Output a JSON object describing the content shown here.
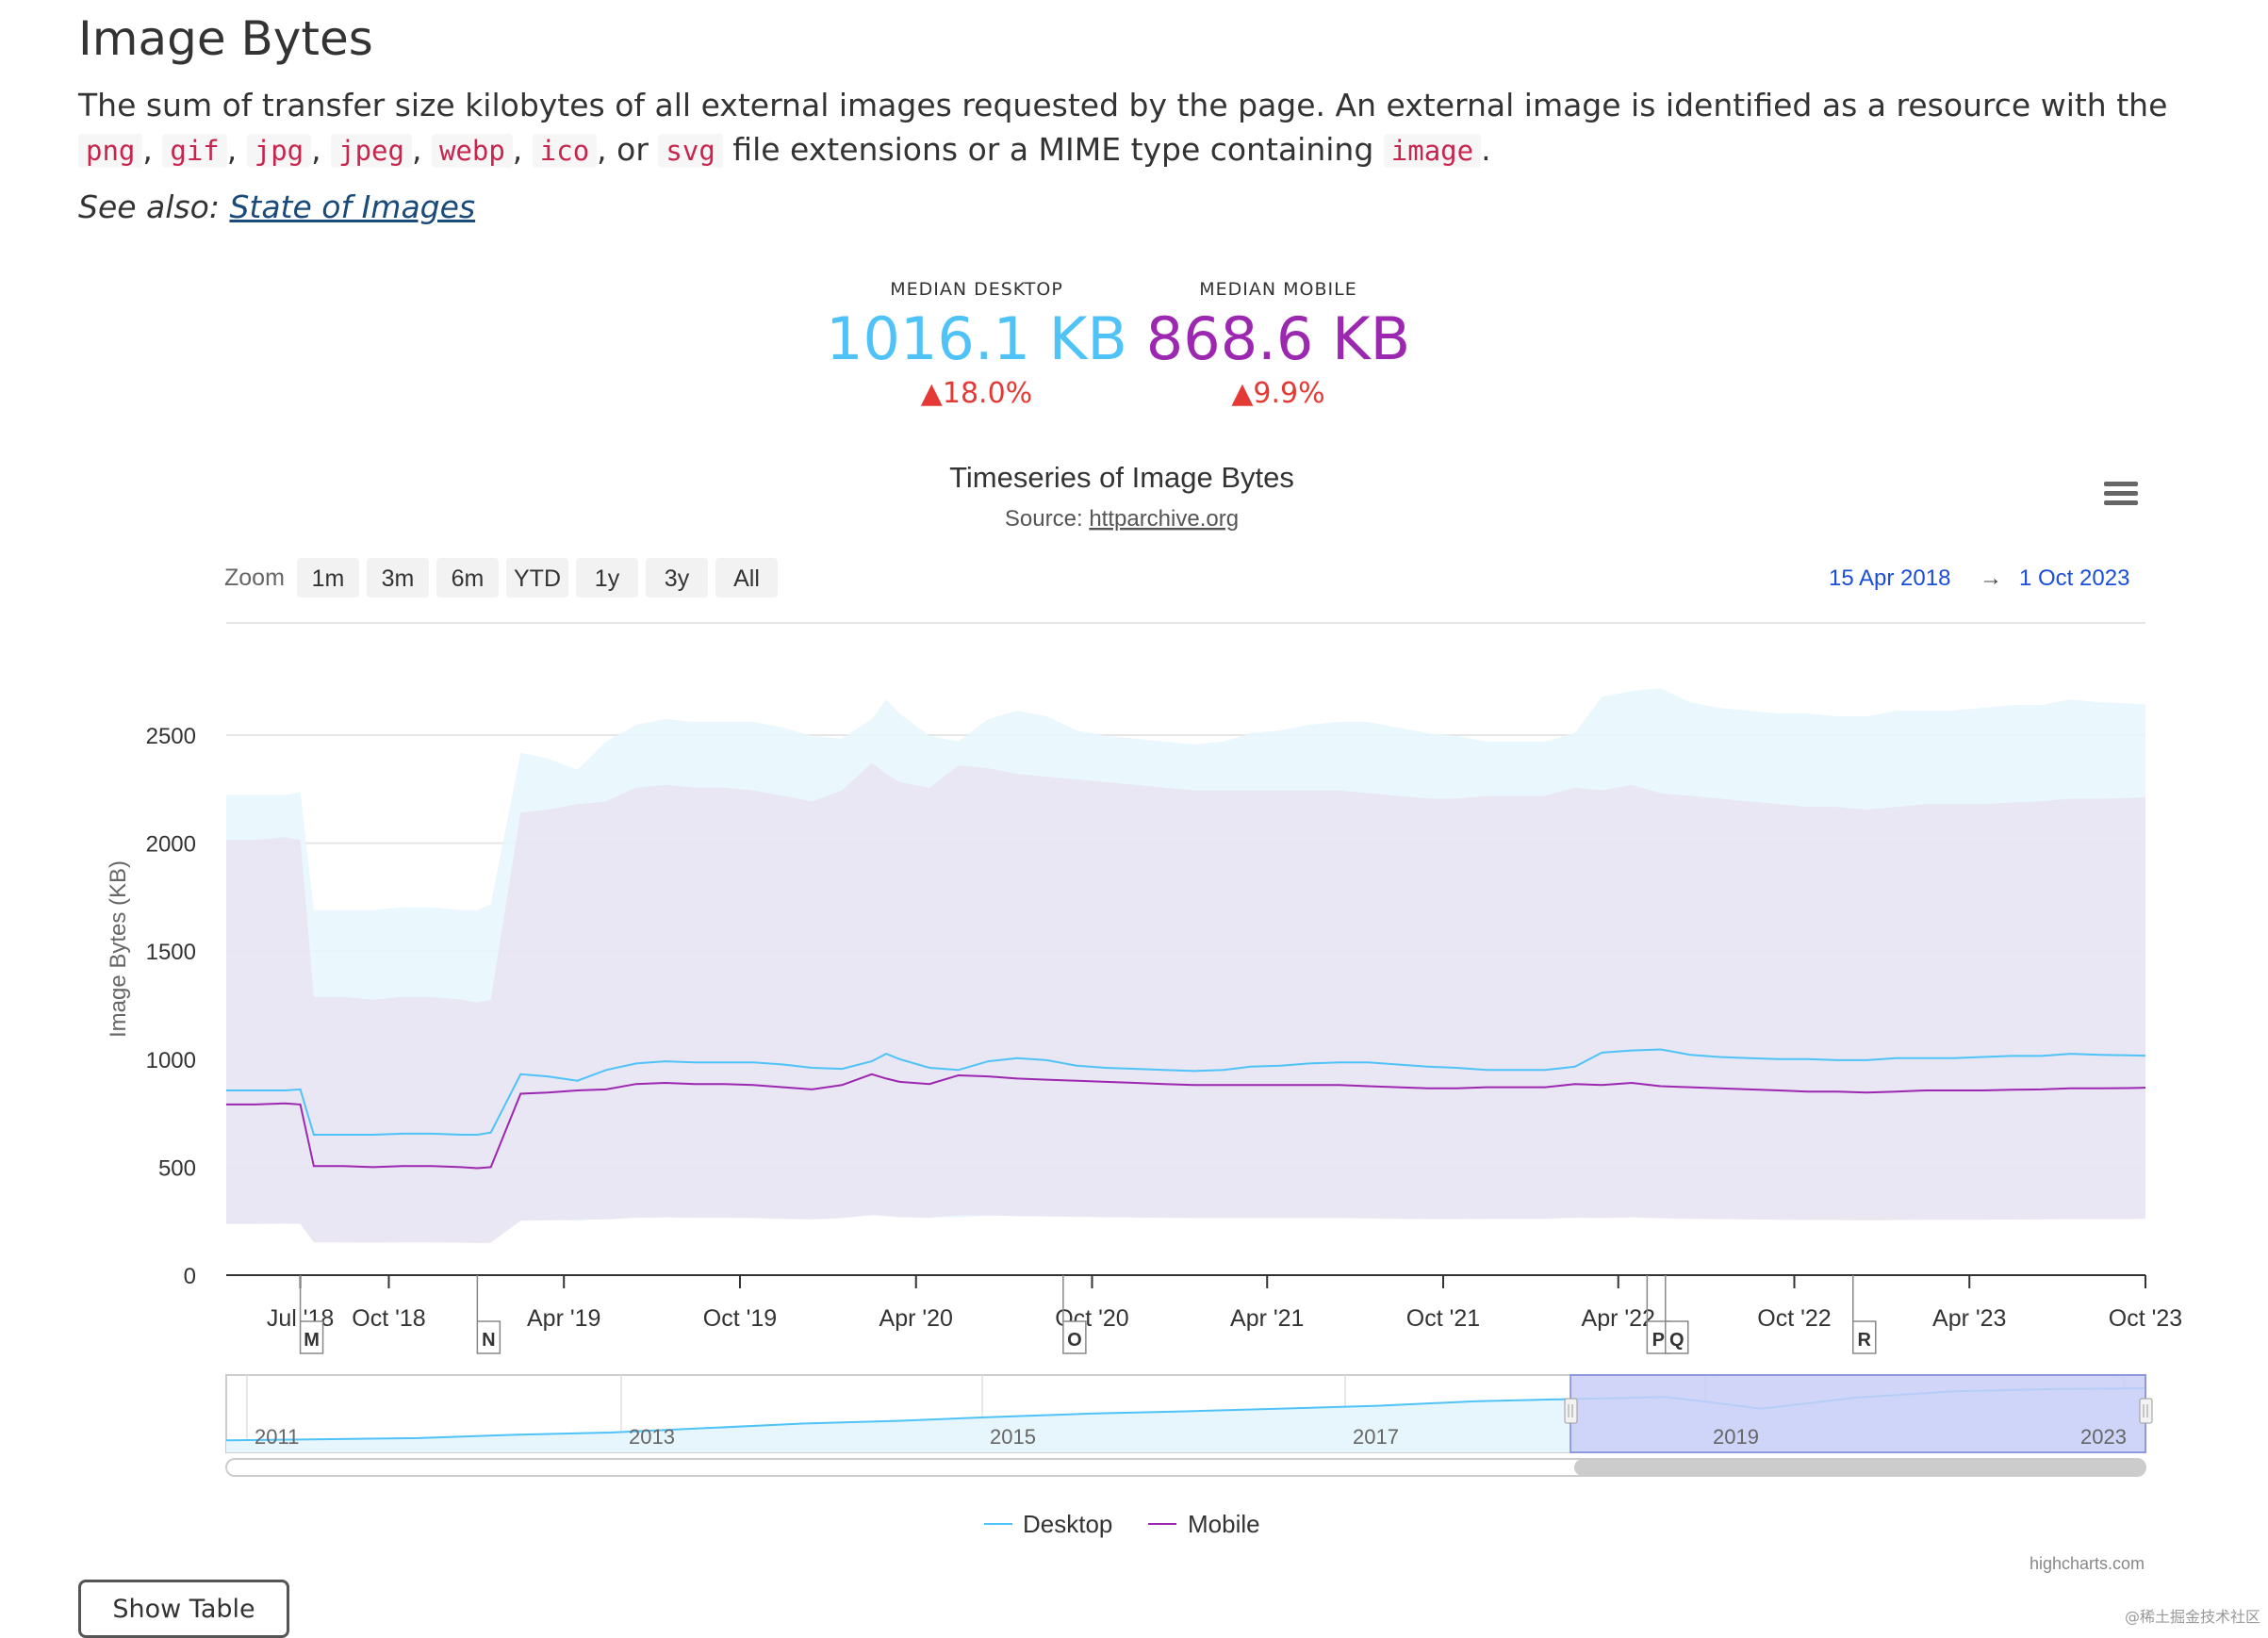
{
  "header": {
    "title": "Image Bytes",
    "desc_1": "The sum of transfer size kilobytes of all external images requested by the page. An external image is identified as a resource with the ",
    "codes": [
      "png",
      "gif",
      "jpg",
      "jpeg",
      "webp",
      "ico",
      "svg",
      "image"
    ],
    "sep_comma": ", ",
    "sep_or": ", or ",
    "desc_2": " file extensions or a MIME type containing ",
    "period": ".",
    "see_also_label": "See also: ",
    "see_also_link": "State of Images"
  },
  "metrics": {
    "desktop": {
      "label": "MEDIAN DESKTOP",
      "value": "1016.1 KB",
      "change": "18.0%"
    },
    "mobile": {
      "label": "MEDIAN MOBILE",
      "value": "868.6 KB",
      "change": "9.9%"
    }
  },
  "colors": {
    "desktop": "#4fc3f7",
    "mobile": "#9c27b0",
    "range_desktop": "#e6f6fd",
    "range_mobile": "#e8e4f2",
    "navigator_mask": "#c9cff7",
    "link": "#1a4ed8"
  },
  "chart_data": {
    "type": "line",
    "title": "Timeseries of Image Bytes",
    "subtitle_prefix": "Source: ",
    "subtitle_link": "httparchive.org",
    "ylabel": "Image Bytes (KB)",
    "ylim": [
      0,
      2500
    ],
    "yticks": [
      0,
      500,
      1000,
      1500,
      2000,
      2500
    ],
    "xrange": [
      "2018-04-15",
      "2023-10-01"
    ],
    "xticks": [
      {
        "date": "2018-07-01",
        "label": "Jul '18"
      },
      {
        "date": "2018-10-01",
        "label": "Oct '18"
      },
      {
        "date": "2019-04-01",
        "label": "Apr '19"
      },
      {
        "date": "2019-10-01",
        "label": "Oct '19"
      },
      {
        "date": "2020-04-01",
        "label": "Apr '20"
      },
      {
        "date": "2020-10-01",
        "label": "Oct '20"
      },
      {
        "date": "2021-04-01",
        "label": "Apr '21"
      },
      {
        "date": "2021-10-01",
        "label": "Oct '21"
      },
      {
        "date": "2022-04-01",
        "label": "Apr '22"
      },
      {
        "date": "2022-10-01",
        "label": "Oct '22"
      },
      {
        "date": "2023-04-01",
        "label": "Apr '23"
      },
      {
        "date": "2023-10-01",
        "label": "Oct '23"
      }
    ],
    "zoom": {
      "label": "Zoom",
      "buttons": [
        "1m",
        "3m",
        "6m",
        "YTD",
        "1y",
        "3y",
        "All"
      ]
    },
    "range_from": "15 Apr 2018",
    "range_arrow": "→",
    "range_to": "1 Oct 2023",
    "series": [
      {
        "name": "Desktop",
        "color": "#4fc3f7",
        "x": [
          "2018-04-15",
          "2018-05-15",
          "2018-06-15",
          "2018-07-01",
          "2018-07-15",
          "2018-08-15",
          "2018-09-15",
          "2018-10-15",
          "2018-11-15",
          "2018-12-15",
          "2019-01-01",
          "2019-01-15",
          "2019-02-15",
          "2019-03-15",
          "2019-04-15",
          "2019-05-15",
          "2019-06-15",
          "2019-07-15",
          "2019-08-15",
          "2019-09-15",
          "2019-10-15",
          "2019-11-15",
          "2019-12-15",
          "2020-01-15",
          "2020-02-15",
          "2020-03-01",
          "2020-03-15",
          "2020-04-15",
          "2020-05-15",
          "2020-06-15",
          "2020-07-15",
          "2020-08-15",
          "2020-09-15",
          "2020-10-15",
          "2020-11-15",
          "2020-12-15",
          "2021-01-15",
          "2021-02-15",
          "2021-03-15",
          "2021-04-15",
          "2021-05-15",
          "2021-06-15",
          "2021-07-15",
          "2021-08-15",
          "2021-09-15",
          "2021-10-15",
          "2021-11-15",
          "2021-12-15",
          "2022-01-15",
          "2022-02-15",
          "2022-03-15",
          "2022-04-15",
          "2022-05-15",
          "2022-06-15",
          "2022-07-15",
          "2022-08-15",
          "2022-09-15",
          "2022-10-15",
          "2022-11-15",
          "2022-12-15",
          "2023-01-15",
          "2023-02-15",
          "2023-03-15",
          "2023-04-15",
          "2023-05-15",
          "2023-06-15",
          "2023-07-15",
          "2023-08-15",
          "2023-09-15",
          "2023-10-01"
        ],
        "values": [
          855,
          855,
          855,
          860,
          650,
          650,
          650,
          655,
          655,
          650,
          650,
          660,
          930,
          920,
          900,
          950,
          980,
          990,
          985,
          985,
          985,
          975,
          960,
          955,
          990,
          1025,
          1000,
          960,
          950,
          990,
          1005,
          995,
          970,
          960,
          955,
          950,
          945,
          950,
          965,
          970,
          980,
          985,
          985,
          975,
          965,
          960,
          950,
          950,
          950,
          965,
          1030,
          1040,
          1045,
          1020,
          1010,
          1005,
          1000,
          1000,
          995,
          995,
          1005,
          1005,
          1005,
          1010,
          1015,
          1015,
          1025,
          1020,
          1018,
          1016
        ]
      },
      {
        "name": "Mobile",
        "color": "#9c27b0",
        "x": [
          "2018-04-15",
          "2018-05-15",
          "2018-06-15",
          "2018-07-01",
          "2018-07-15",
          "2018-08-15",
          "2018-09-15",
          "2018-10-15",
          "2018-11-15",
          "2018-12-15",
          "2019-01-01",
          "2019-01-15",
          "2019-02-15",
          "2019-03-15",
          "2019-04-15",
          "2019-05-15",
          "2019-06-15",
          "2019-07-15",
          "2019-08-15",
          "2019-09-15",
          "2019-10-15",
          "2019-11-15",
          "2019-12-15",
          "2020-01-15",
          "2020-02-15",
          "2020-03-01",
          "2020-03-15",
          "2020-04-15",
          "2020-05-15",
          "2020-06-15",
          "2020-07-15",
          "2020-08-15",
          "2020-09-15",
          "2020-10-15",
          "2020-11-15",
          "2020-12-15",
          "2021-01-15",
          "2021-02-15",
          "2021-03-15",
          "2021-04-15",
          "2021-05-15",
          "2021-06-15",
          "2021-07-15",
          "2021-08-15",
          "2021-09-15",
          "2021-10-15",
          "2021-11-15",
          "2021-12-15",
          "2022-01-15",
          "2022-02-15",
          "2022-03-15",
          "2022-04-15",
          "2022-05-15",
          "2022-06-15",
          "2022-07-15",
          "2022-08-15",
          "2022-09-15",
          "2022-10-15",
          "2022-11-15",
          "2022-12-15",
          "2023-01-15",
          "2023-02-15",
          "2023-03-15",
          "2023-04-15",
          "2023-05-15",
          "2023-06-15",
          "2023-07-15",
          "2023-08-15",
          "2023-09-15",
          "2023-10-01"
        ],
        "values": [
          790,
          790,
          795,
          790,
          505,
          505,
          500,
          505,
          505,
          500,
          495,
          500,
          840,
          845,
          855,
          860,
          885,
          890,
          885,
          885,
          880,
          870,
          860,
          880,
          930,
          910,
          895,
          885,
          925,
          920,
          910,
          905,
          900,
          895,
          890,
          885,
          880,
          880,
          880,
          880,
          880,
          880,
          875,
          870,
          865,
          865,
          870,
          870,
          870,
          885,
          880,
          890,
          875,
          870,
          865,
          860,
          855,
          850,
          850,
          845,
          850,
          855,
          855,
          855,
          858,
          860,
          865,
          865,
          866,
          868
        ]
      }
    ],
    "flags": [
      {
        "date": "2018-07-01",
        "label": "M"
      },
      {
        "date": "2019-01-01",
        "label": "N"
      },
      {
        "date": "2020-09-01",
        "label": "O"
      },
      {
        "date": "2022-05-01",
        "label": "P"
      },
      {
        "date": "2022-05-20",
        "label": "Q"
      },
      {
        "date": "2022-12-01",
        "label": "R"
      }
    ],
    "navigator": {
      "labels": [
        "2011",
        "2013",
        "2015",
        "2017",
        "2019",
        "2023"
      ],
      "values": [
        80,
        100,
        120,
        180,
        220,
        300,
        380,
        430,
        500,
        560,
        600,
        650,
        700,
        780,
        820,
        860,
        650,
        850,
        960,
        1000,
        1016
      ]
    },
    "legend": [
      "Desktop",
      "Mobile"
    ],
    "credits": "highcharts.com"
  },
  "controls": {
    "show_table": "Show Table"
  },
  "watermark": "@稀土掘金技术社区"
}
